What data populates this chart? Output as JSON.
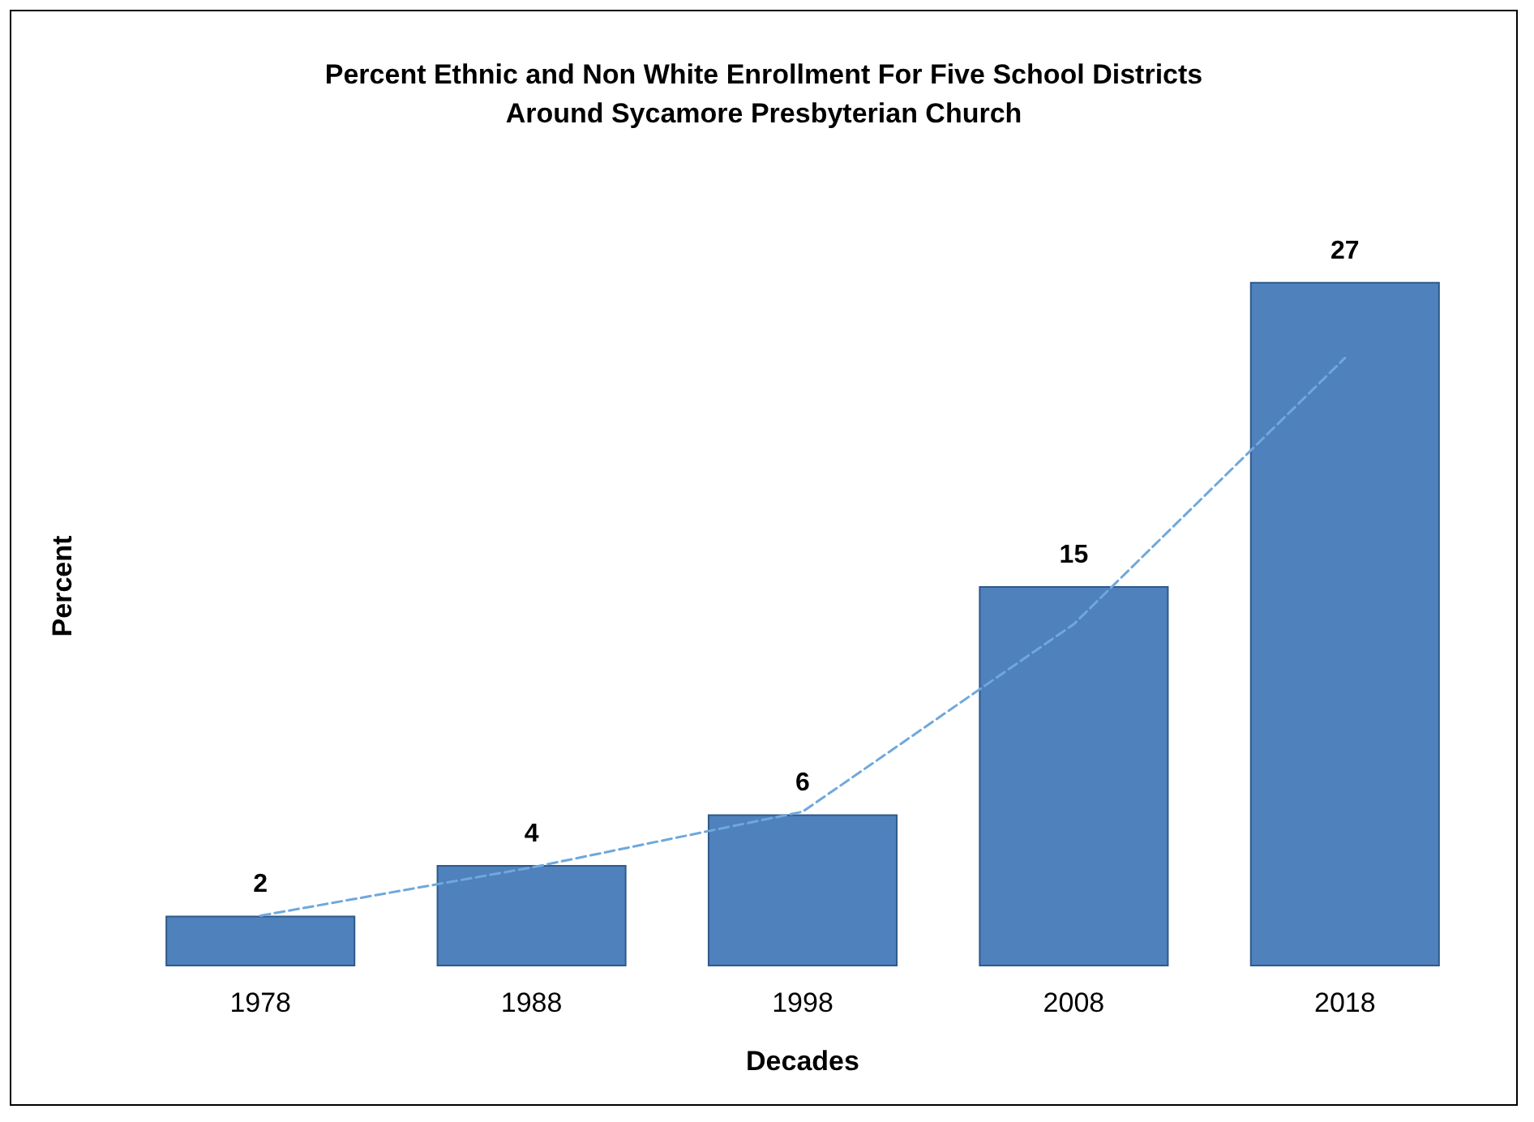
{
  "chart_data": {
    "type": "bar",
    "title": "Percent Ethnic and Non White Enrollment For Five School Districts\nAround Sycamore Presbyterian Church",
    "xlabel": "Decades",
    "ylabel": "Percent",
    "categories": [
      "1978",
      "1988",
      "1998",
      "2008",
      "2018"
    ],
    "series": [
      {
        "color": "#4f81bd",
        "values": [
          2,
          4,
          6,
          15,
          27
        ],
        "value_labels": [
          "2",
          "4",
          "6",
          "15",
          "27"
        ]
      },
      {
        "type": "line",
        "color": "#6fa8dc",
        "values": [
          2,
          3.9,
          6.1,
          13.5,
          24
        ],
        "marker": "none",
        "line_style": "dashed"
      }
    ],
    "grid": false,
    "tick_labels": "x"
  }
}
